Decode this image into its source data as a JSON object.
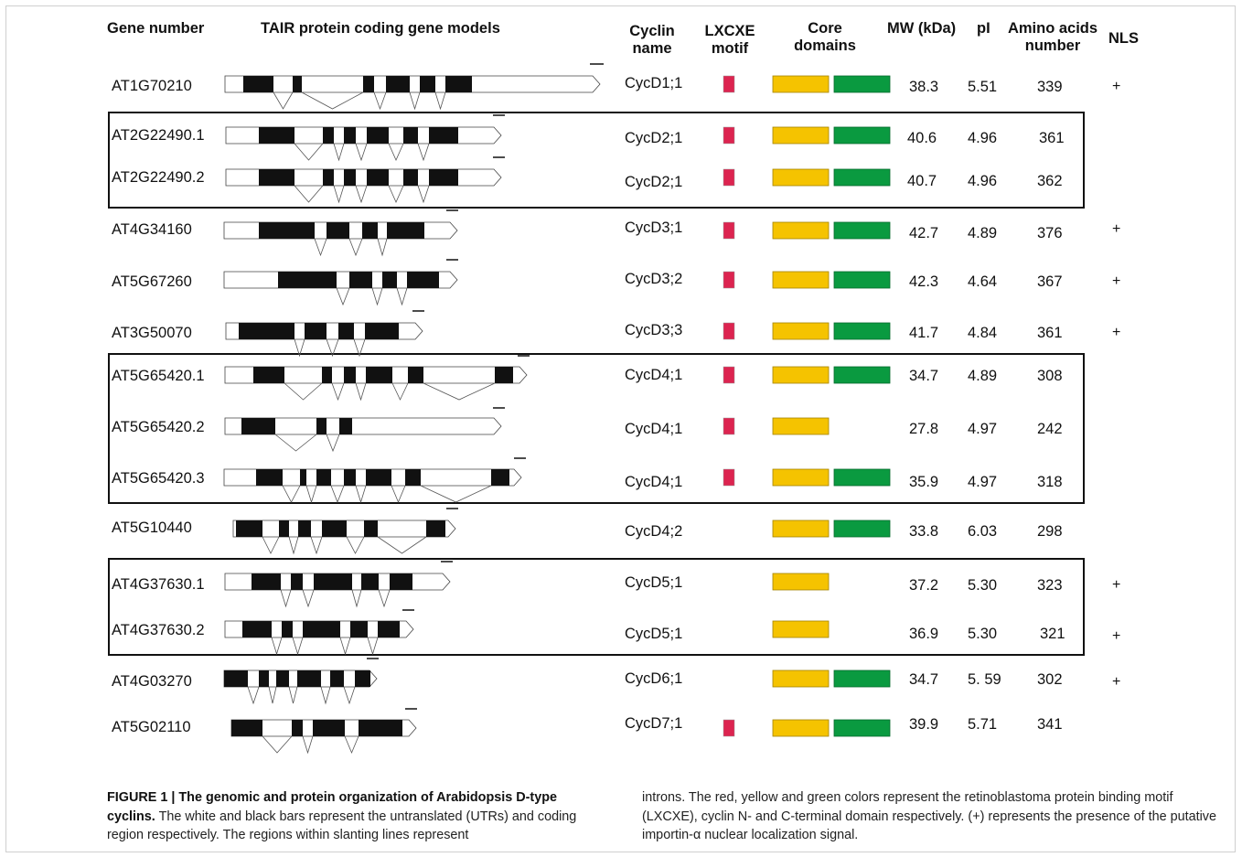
{
  "headers": {
    "gene_number": "Gene number",
    "gene_models": "TAIR protein coding gene models",
    "cyclin_name": "Cyclin\nname",
    "lxcxe_motif": "LXCXE\nmotif",
    "core_domains": "Core\ndomains",
    "mw": "MW (kDa)",
    "pi": "pI",
    "amino_acids": "Amino acids\nnumber",
    "nls": "NLS"
  },
  "colors": {
    "lxcxe": "#dc2450",
    "n_domain": "#f5c300",
    "c_domain": "#0a9a40",
    "exon": "#111111",
    "utr": "#ffffff"
  },
  "rows": [
    {
      "gene": "AT1G70210",
      "cyclin": "CycD1;1",
      "lxcxe": true,
      "n_domain": true,
      "c_domain": true,
      "mw": "38.3",
      "pi": "5.51",
      "aa": "339",
      "nls": "+"
    },
    {
      "gene": "AT2G22490.1",
      "cyclin": "CycD2;1",
      "lxcxe": true,
      "n_domain": true,
      "c_domain": true,
      "mw": "40.6",
      "pi": "4.96",
      "aa": "361",
      "nls": ""
    },
    {
      "gene": "AT2G22490.2",
      "cyclin": "CycD2;1",
      "lxcxe": true,
      "n_domain": true,
      "c_domain": true,
      "mw": "40.7",
      "pi": "4.96",
      "aa": "362",
      "nls": ""
    },
    {
      "gene": "AT4G34160",
      "cyclin": "CycD3;1",
      "lxcxe": true,
      "n_domain": true,
      "c_domain": true,
      "mw": "42.7",
      "pi": "4.89",
      "aa": "376",
      "nls": "+"
    },
    {
      "gene": "AT5G67260",
      "cyclin": "CycD3;2",
      "lxcxe": true,
      "n_domain": true,
      "c_domain": true,
      "mw": "42.3",
      "pi": "4.64",
      "aa": "367",
      "nls": "+"
    },
    {
      "gene": "AT3G50070",
      "cyclin": "CycD3;3",
      "lxcxe": true,
      "n_domain": true,
      "c_domain": true,
      "mw": "41.7",
      "pi": "4.84",
      "aa": "361",
      "nls": "+"
    },
    {
      "gene": "AT5G65420.1",
      "cyclin": "CycD4;1",
      "lxcxe": true,
      "n_domain": true,
      "c_domain": true,
      "mw": "34.7",
      "pi": "4.89",
      "aa": "308",
      "nls": ""
    },
    {
      "gene": "AT5G65420.2",
      "cyclin": "CycD4;1",
      "lxcxe": true,
      "n_domain": true,
      "c_domain": false,
      "mw": "27.8",
      "pi": "4.97",
      "aa": "242",
      "nls": ""
    },
    {
      "gene": "AT5G65420.3",
      "cyclin": "CycD4;1",
      "lxcxe": true,
      "n_domain": true,
      "c_domain": true,
      "mw": "35.9",
      "pi": "4.97",
      "aa": "318",
      "nls": ""
    },
    {
      "gene": "AT5G10440",
      "cyclin": "CycD4;2",
      "lxcxe": false,
      "n_domain": true,
      "c_domain": true,
      "mw": "33.8",
      "pi": "6.03",
      "aa": "298",
      "nls": ""
    },
    {
      "gene": "AT4G37630.1",
      "cyclin": "CycD5;1",
      "lxcxe": false,
      "n_domain": true,
      "c_domain": false,
      "mw": "37.2",
      "pi": "5.30",
      "aa": "323",
      "nls": "+"
    },
    {
      "gene": "AT4G37630.2",
      "cyclin": "CycD5;1",
      "lxcxe": false,
      "n_domain": true,
      "c_domain": false,
      "mw": "36.9",
      "pi": "5.30",
      "aa": "321",
      "nls": "+"
    },
    {
      "gene": "AT4G03270",
      "cyclin": "CycD6;1",
      "lxcxe": false,
      "n_domain": true,
      "c_domain": true,
      "mw": "34.7",
      "pi": "5. 59",
      "aa": "302",
      "nls": "+"
    },
    {
      "gene": "AT5G02110",
      "cyclin": "CycD7;1",
      "lxcxe": true,
      "n_domain": true,
      "c_domain": true,
      "mw": "39.9",
      "pi": "5.71",
      "aa": "341",
      "nls": ""
    }
  ],
  "caption": {
    "label": "FIGURE 1 | The genomic and protein organization of Arabidopsis D-type cyclins.",
    "text_left": "The white and black bars represent the untranslated (UTRs) and coding region respectively. The regions within slanting lines represent",
    "text_right": "introns. The red, yellow and green colors represent the retinoblastoma protein binding motif (LXCXE), cyclin N- and C-terminal domain respectively. (+) represents the presence of the putative importin-α nuclear localization signal."
  }
}
